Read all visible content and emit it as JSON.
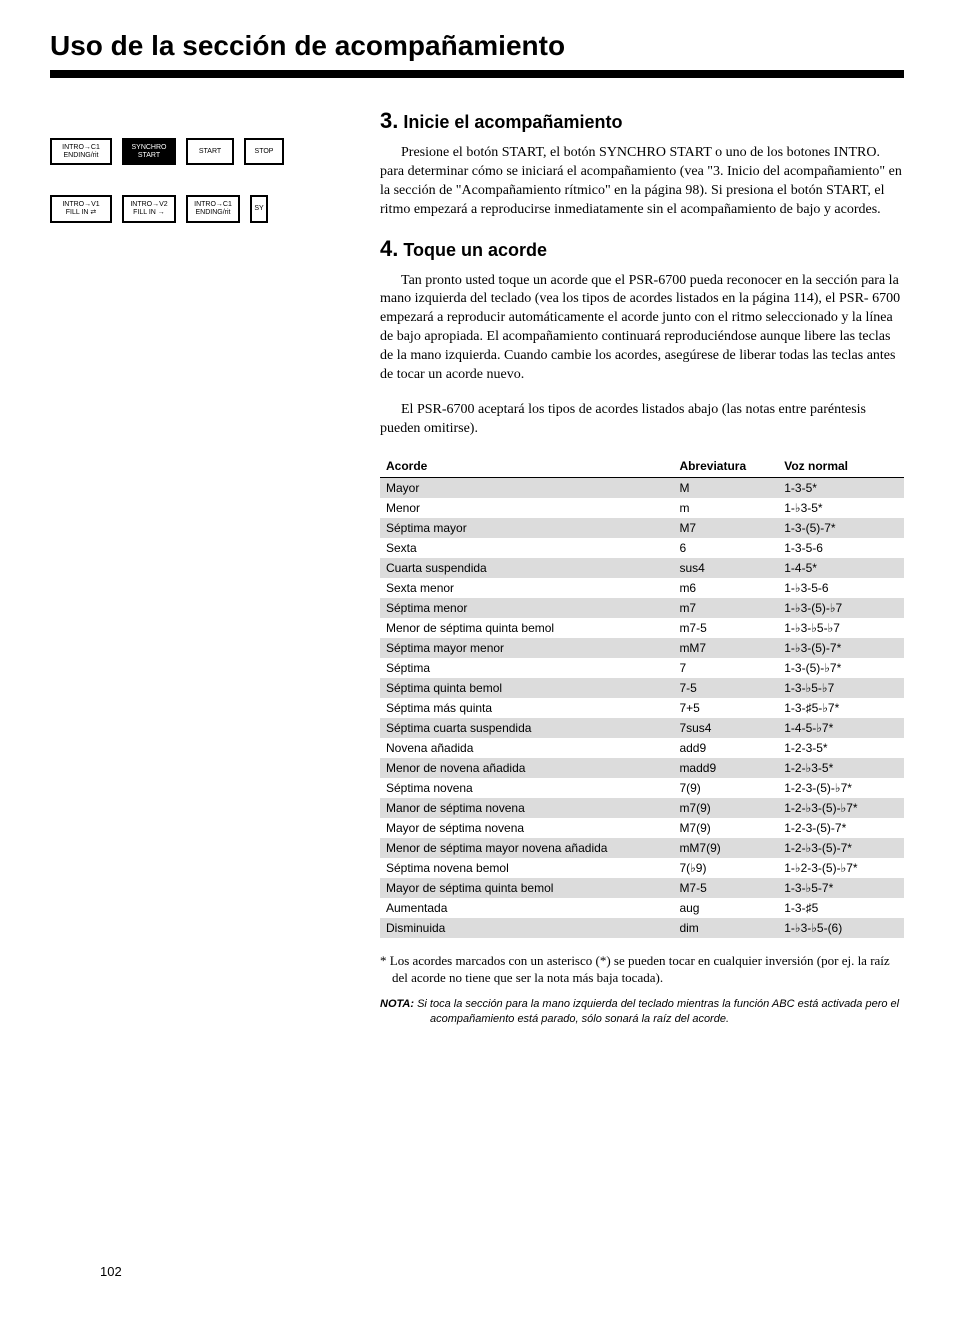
{
  "page_title": "Uso de la sección de acompañamiento",
  "page_number": "102",
  "buttons": {
    "row1": [
      {
        "label": "INTRO→C1\nENDING/rit",
        "cls": "w1"
      },
      {
        "label": "SYNCHRO\nSTART",
        "cls": "w2 filled"
      },
      {
        "label": "START",
        "cls": "w3"
      },
      {
        "label": "STOP",
        "cls": "w4"
      }
    ],
    "row2": [
      {
        "label": "INTRO→V1\nFILL IN ⇄",
        "cls": "w1"
      },
      {
        "label": "INTRO→V2\nFILL IN →",
        "cls": "w2"
      },
      {
        "label": "INTRO→C1\nENDING/rit",
        "cls": "w2"
      },
      {
        "label": "SY",
        "cls": "narrow"
      }
    ]
  },
  "section3": {
    "num": "3.",
    "title": "Inicie el acompañamiento",
    "body": "Presione el botón START, el botón SYNCHRO START o uno de los botones INTRO. para determinar cómo se iniciará el acompañamiento (vea \"3. Inicio del acompañamiento\" en la sección de \"Acompañamiento rítmico\" en la página 98).  Si presiona el botón START, el ritmo empezará a reproducirse inmediatamente sin el acompañamiento de bajo y acordes."
  },
  "section4": {
    "num": "4.",
    "title": "Toque un acorde",
    "body1": "Tan pronto usted toque un acorde que el PSR-6700 pueda reconocer en la sección para la mano izquierda del teclado (vea los tipos de acordes listados en la página 114), el PSR- 6700 empezará a reproducir automáticamente el acorde junto con el ritmo seleccionado y la línea de bajo apropiada.  El acompañamiento continuará reproduciéndose aunque libere las teclas de la mano izquierda. Cuando cambie los acordes, asegúrese de liberar todas las teclas antes de tocar un acorde nuevo.",
    "body2": "El PSR-6700 aceptará los tipos de acordes listados abajo (las notas entre paréntesis pueden omitirse)."
  },
  "table": {
    "headers": [
      "Acorde",
      "Abreviatura",
      "Voz normal"
    ],
    "rows": [
      {
        "shaded": true,
        "c": [
          "Mayor",
          "M",
          "1-3-5*"
        ]
      },
      {
        "shaded": false,
        "c": [
          "Menor",
          "m",
          "1-♭3-5*"
        ]
      },
      {
        "shaded": true,
        "c": [
          "Séptima mayor",
          "M7",
          "1-3-(5)-7*"
        ]
      },
      {
        "shaded": false,
        "c": [
          "Sexta",
          "6",
          "1-3-5-6"
        ]
      },
      {
        "shaded": true,
        "c": [
          "Cuarta suspendida",
          "sus4",
          "1-4-5*"
        ]
      },
      {
        "shaded": false,
        "c": [
          "Sexta menor",
          "m6",
          "1-♭3-5-6"
        ]
      },
      {
        "shaded": true,
        "c": [
          "Séptima menor",
          "m7",
          "1-♭3-(5)-♭7"
        ]
      },
      {
        "shaded": false,
        "c": [
          "Menor de séptima quinta bemol",
          "m7-5",
          "1-♭3-♭5-♭7"
        ]
      },
      {
        "shaded": true,
        "c": [
          "Séptima mayor menor",
          "mM7",
          "1-♭3-(5)-7*"
        ]
      },
      {
        "shaded": false,
        "c": [
          "Séptima",
          "7",
          "1-3-(5)-♭7*"
        ]
      },
      {
        "shaded": true,
        "c": [
          "Séptima quinta bemol",
          "7-5",
          "1-3-♭5-♭7"
        ]
      },
      {
        "shaded": false,
        "c": [
          "Séptima más quinta",
          "7+5",
          "1-3-♯5-♭7*"
        ]
      },
      {
        "shaded": true,
        "c": [
          "Séptima cuarta suspendida",
          "7sus4",
          "1-4-5-♭7*"
        ]
      },
      {
        "shaded": false,
        "c": [
          "Novena añadida",
          "add9",
          "1-2-3-5*"
        ]
      },
      {
        "shaded": true,
        "c": [
          "Menor de novena añadida",
          "madd9",
          "1-2-♭3-5*"
        ]
      },
      {
        "shaded": false,
        "c": [
          "Séptima novena",
          "7(9)",
          "1-2-3-(5)-♭7*"
        ]
      },
      {
        "shaded": true,
        "c": [
          "Manor de séptima novena",
          "m7(9)",
          "1-2-♭3-(5)-♭7*"
        ]
      },
      {
        "shaded": false,
        "c": [
          "Mayor de séptima novena",
          "M7(9)",
          "1-2-3-(5)-7*"
        ]
      },
      {
        "shaded": true,
        "c": [
          "Menor de séptima mayor novena añadida",
          "mM7(9)",
          "1-2-♭3-(5)-7*"
        ]
      },
      {
        "shaded": false,
        "c": [
          "Séptima novena bemol",
          "7(♭9)",
          "1-♭2-3-(5)-♭7*"
        ]
      },
      {
        "shaded": true,
        "c": [
          "Mayor de séptima quinta bemol",
          "M7-5",
          "1-3-♭5-7*"
        ]
      },
      {
        "shaded": false,
        "c": [
          "Aumentada",
          "aug",
          "1-3-♯5"
        ]
      },
      {
        "shaded": true,
        "c": [
          "Disminuida",
          "dim",
          "1-♭3-♭5-(6)"
        ]
      }
    ]
  },
  "footnote": "* Los acordes marcados con un asterisco (*) se pueden tocar en cualquier inversión (por ej. la raíz del acorde no tiene que ser la nota más baja tocada).",
  "nota_label": "NOTA:",
  "nota_body": "Si toca la sección para la mano izquierda del teclado mientras la función ABC está activada pero el acompañamiento está parado, sólo sonará la raíz del acorde."
}
